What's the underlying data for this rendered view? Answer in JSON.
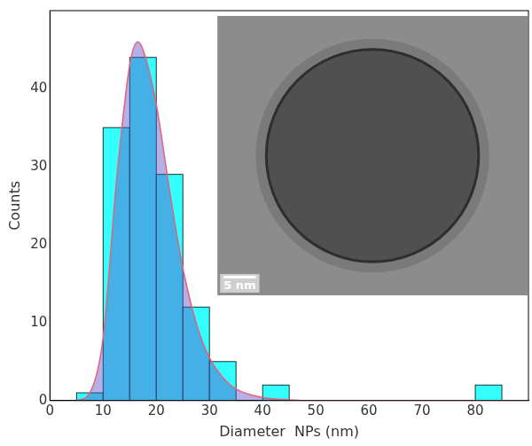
{
  "chart_data": {
    "type": "histogram",
    "x_label": "Diameter  NPs (nm)",
    "y_label": "Counts",
    "bins": [
      5,
      10,
      15,
      20,
      25,
      30,
      35,
      40,
      45,
      50,
      55,
      60,
      65,
      70,
      75,
      80,
      85
    ],
    "counts": [
      1,
      35,
      44,
      29,
      12,
      5,
      0,
      2,
      0,
      0,
      0,
      0,
      0,
      0,
      0,
      2
    ],
    "color": "#33ffff",
    "series": [
      {
        "type": "line",
        "color": "#e8607a",
        "x": [
          5,
          7.5,
          10,
          12.5,
          15,
          16.5,
          17.5,
          20,
          22.5,
          25,
          27.5,
          30,
          32.5,
          35,
          40,
          45,
          50,
          90
        ],
        "values": [
          0,
          1,
          8,
          28,
          43,
          46,
          45,
          38,
          27,
          17,
          10,
          5.5,
          3,
          1.5,
          0.4,
          0.1,
          0,
          0
        ]
      }
    ],
    "xlim": [
      0,
      90
    ],
    "xticks": [
      0,
      10,
      20,
      30,
      40,
      50,
      60,
      70,
      80
    ],
    "ylim": [
      0,
      50
    ],
    "yticks": [
      0,
      10,
      20,
      30,
      40
    ],
    "grid": false,
    "annotations": [
      "5 nm"
    ]
  }
}
